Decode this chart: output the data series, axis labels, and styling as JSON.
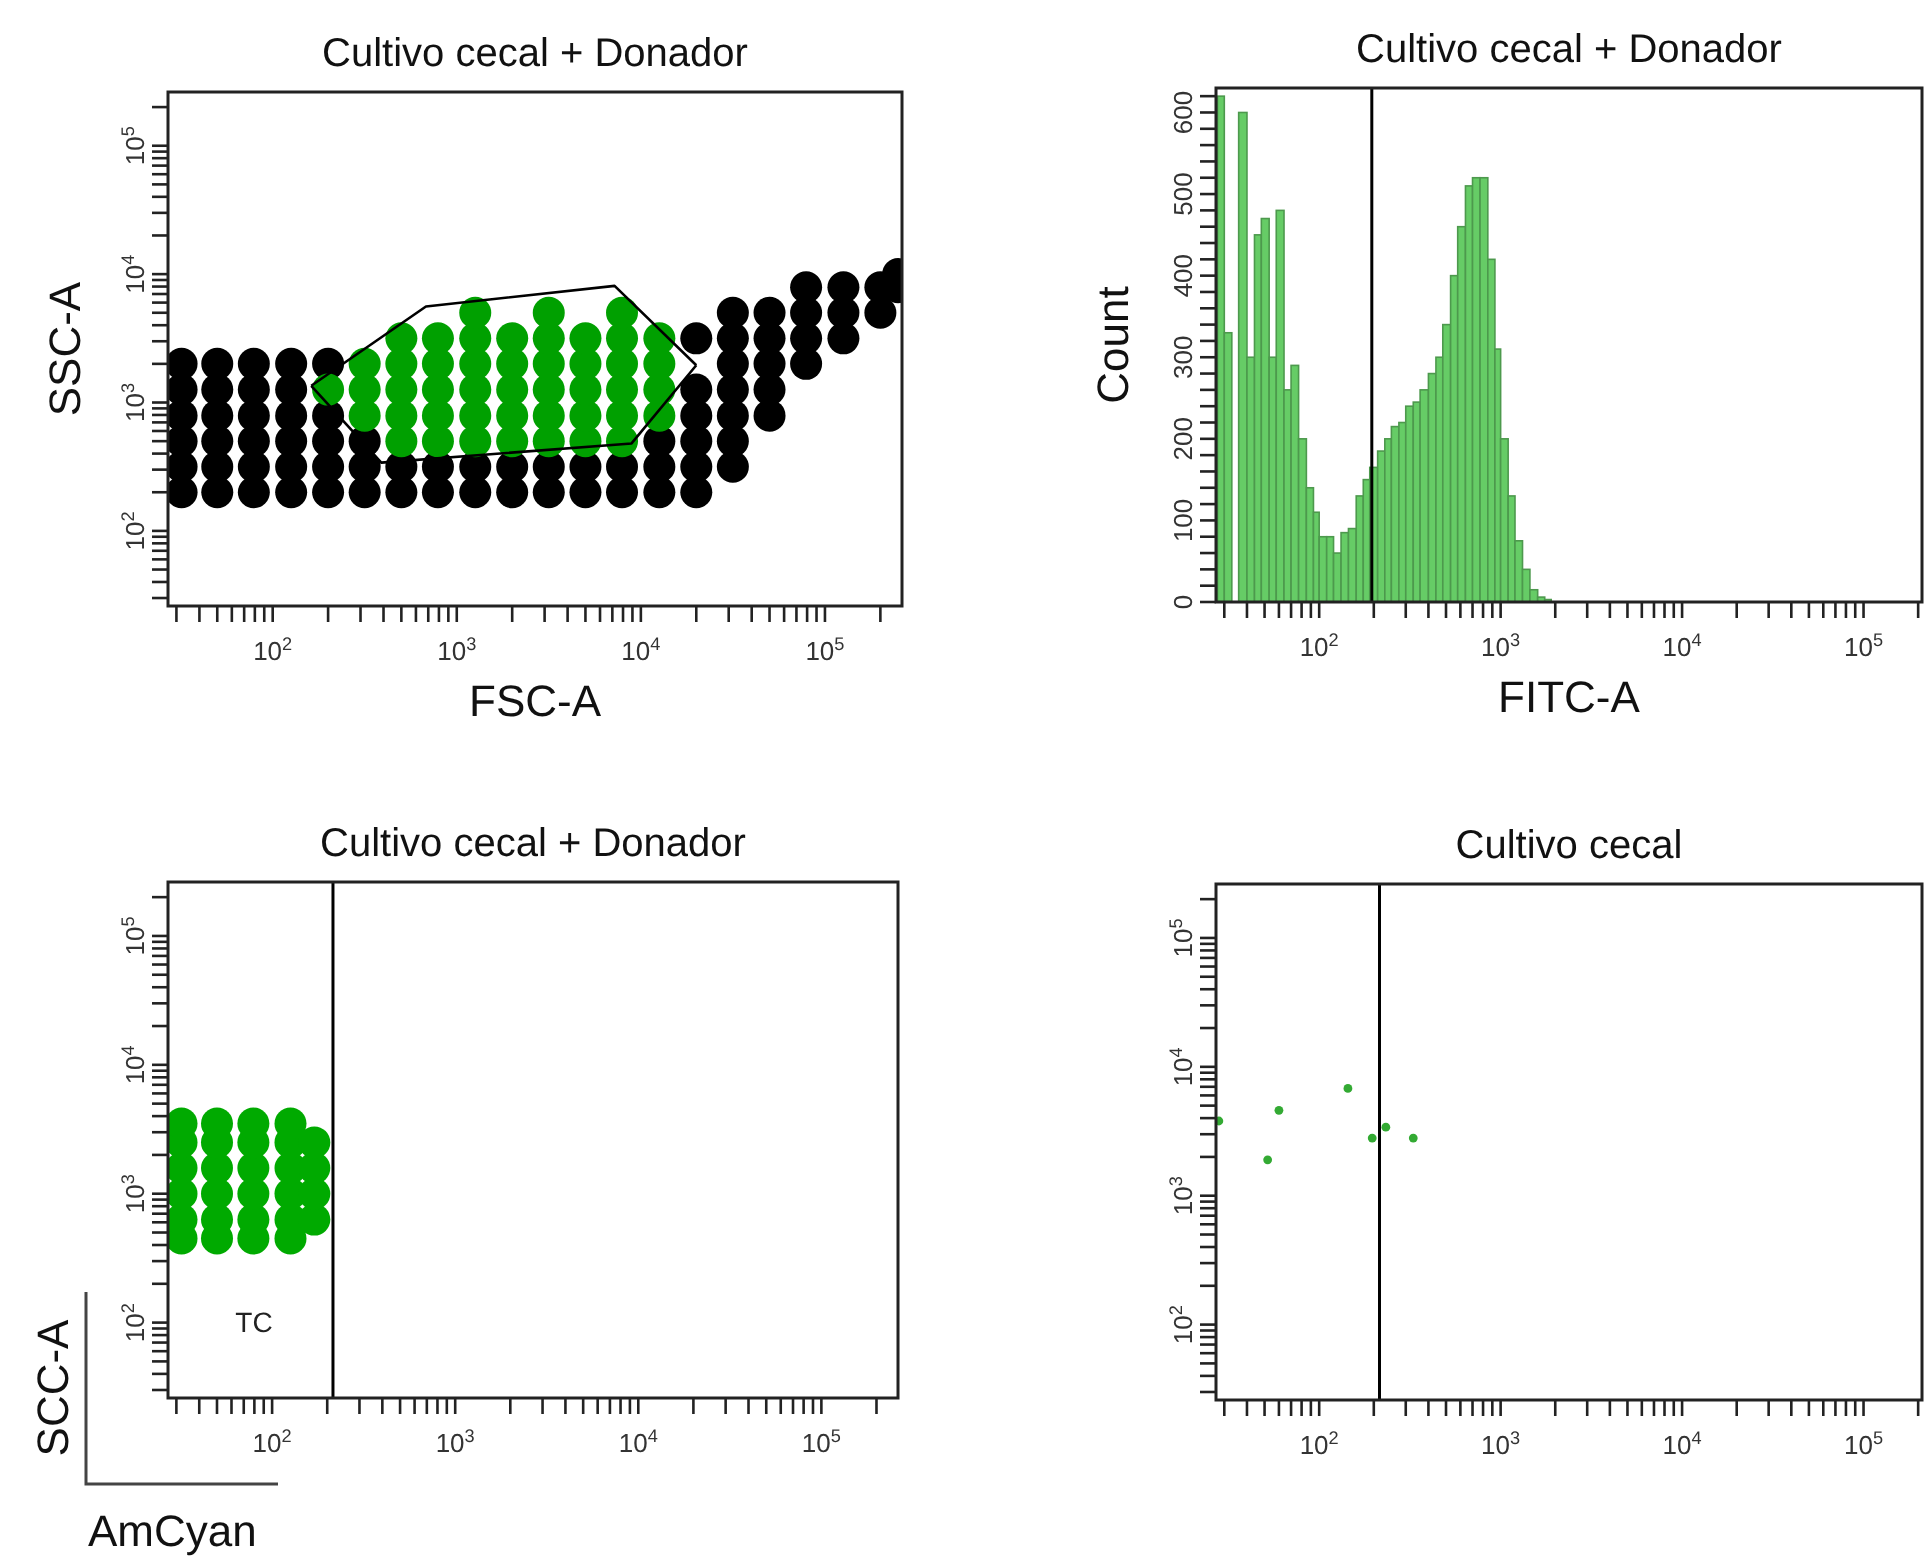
{
  "chart_data": [
    {
      "type": "scatter",
      "title": "Cultivo cecal + Donador",
      "xlabel": "FSC-A",
      "ylabel": "SSC-A",
      "log": "xy",
      "marker": "circle",
      "xlim": [
        27,
        262144
      ],
      "ylim": [
        26,
        262144
      ],
      "xticks": [
        {
          "value": 30,
          "label": null
        },
        {
          "value": 40,
          "label": null
        },
        {
          "value": 50,
          "label": null
        },
        {
          "value": 60,
          "label": null
        },
        {
          "value": 70,
          "label": null
        },
        {
          "value": 80,
          "label": null
        },
        {
          "value": 90,
          "label": null
        },
        {
          "value": 100,
          "label": "10$^{2}$"
        },
        {
          "value": 200,
          "label": null
        },
        {
          "value": 300,
          "label": null
        },
        {
          "value": 400,
          "label": null
        },
        {
          "value": 500,
          "label": null
        },
        {
          "value": 600,
          "label": null
        },
        {
          "value": 700,
          "label": null
        },
        {
          "value": 800,
          "label": null
        },
        {
          "value": 900,
          "label": null
        },
        {
          "value": 1000,
          "label": "10$^{3}$"
        },
        {
          "value": 2000,
          "label": null
        },
        {
          "value": 3000,
          "label": null
        },
        {
          "value": 4000,
          "label": null
        },
        {
          "value": 5000,
          "label": null
        },
        {
          "value": 6000,
          "label": null
        },
        {
          "value": 7000,
          "label": null
        },
        {
          "value": 8000,
          "label": null
        },
        {
          "value": 9000,
          "label": null
        },
        {
          "value": 10000,
          "label": "10$^{4}$"
        },
        {
          "value": 20000,
          "label": null
        },
        {
          "value": 30000,
          "label": null
        },
        {
          "value": 40000,
          "label": null
        },
        {
          "value": 50000,
          "label": null
        },
        {
          "value": 60000,
          "label": null
        },
        {
          "value": 70000,
          "label": null
        },
        {
          "value": 80000,
          "label": null
        },
        {
          "value": 90000,
          "label": null
        },
        {
          "value": 100000,
          "label": "10$^{5}$"
        },
        {
          "value": 200000,
          "label": null
        }
      ],
      "yticks": [
        {
          "value": 30,
          "label": null
        },
        {
          "value": 40,
          "label": null
        },
        {
          "value": 50,
          "label": null
        },
        {
          "value": 60,
          "label": null
        },
        {
          "value": 70,
          "label": null
        },
        {
          "value": 80,
          "label": null
        },
        {
          "value": 90,
          "label": null
        },
        {
          "value": 100,
          "label": "10$^{2}$"
        },
        {
          "value": 200,
          "label": null
        },
        {
          "value": 300,
          "label": null
        },
        {
          "value": 400,
          "label": null
        },
        {
          "value": 500,
          "label": null
        },
        {
          "value": 600,
          "label": null
        },
        {
          "value": 700,
          "label": null
        },
        {
          "value": 800,
          "label": null
        },
        {
          "value": 900,
          "label": null
        },
        {
          "value": 1000,
          "label": "10$^{3}$"
        },
        {
          "value": 2000,
          "label": null
        },
        {
          "value": 3000,
          "label": null
        },
        {
          "value": 4000,
          "label": null
        },
        {
          "value": 5000,
          "label": null
        },
        {
          "value": 6000,
          "label": null
        },
        {
          "value": 7000,
          "label": null
        },
        {
          "value": 8000,
          "label": null
        },
        {
          "value": 9000,
          "label": null
        },
        {
          "value": 10000,
          "label": "10$^{4}$"
        },
        {
          "value": 20000,
          "label": null
        },
        {
          "value": 30000,
          "label": null
        },
        {
          "value": 40000,
          "label": null
        },
        {
          "value": 50000,
          "label": null
        },
        {
          "value": 60000,
          "label": null
        },
        {
          "value": 70000,
          "label": null
        },
        {
          "value": 80000,
          "label": null
        },
        {
          "value": 90000,
          "label": null
        },
        {
          "value": 100000,
          "label": "10$^{5}$"
        },
        {
          "value": 200000,
          "label": null
        }
      ],
      "series": [
        {
          "color": "#000000",
          "x": [
            32,
            50,
            79,
            126,
            200,
            316,
            500,
            790,
            1260,
            2000,
            3160,
            5000,
            7900,
            12600,
            20000,
            32,
            50,
            79,
            126,
            200,
            316,
            500,
            790,
            1260,
            2000,
            3160,
            5000,
            7900,
            12600,
            20000,
            31600,
            32,
            50,
            79,
            126,
            200,
            316,
            12600,
            20000,
            31600,
            32,
            50,
            79,
            126,
            200,
            20000,
            31600,
            50000,
            32,
            50,
            79,
            126,
            20000,
            31600,
            50000,
            32,
            50,
            79,
            126,
            200,
            31600,
            50000,
            79000,
            20000,
            31600,
            50000,
            79000,
            126000,
            31600,
            50000,
            79000,
            126000,
            200000,
            79000,
            126000,
            200000,
            250000,
            250000
          ],
          "values": [
            200,
            200,
            200,
            200,
            200,
            200,
            200,
            200,
            200,
            200,
            200,
            200,
            200,
            200,
            200,
            316,
            316,
            316,
            316,
            316,
            316,
            316,
            316,
            316,
            316,
            316,
            316,
            316,
            316,
            316,
            316,
            500,
            500,
            500,
            500,
            500,
            500,
            500,
            500,
            500,
            790,
            790,
            790,
            790,
            790,
            790,
            790,
            790,
            1260,
            1260,
            1260,
            1260,
            1260,
            1260,
            1260,
            2000,
            2000,
            2000,
            2000,
            2000,
            2000,
            2000,
            2000,
            3160,
            3160,
            3160,
            3160,
            3160,
            5000,
            5000,
            5000,
            5000,
            5000,
            7900,
            7900,
            7900,
            7900,
            10000
          ]
        },
        {
          "color": "#00a000",
          "x": [
            500,
            790,
            1260,
            2000,
            3160,
            5000,
            7900,
            316,
            500,
            790,
            1260,
            2000,
            3160,
            5000,
            7900,
            12600,
            200,
            316,
            500,
            790,
            1260,
            2000,
            3160,
            5000,
            7900,
            12600,
            316,
            500,
            790,
            1260,
            2000,
            3160,
            5000,
            7900,
            12600,
            500,
            790,
            1260,
            2000,
            3160,
            5000,
            7900,
            12600,
            1260,
            3160,
            7900
          ],
          "values": [
            500,
            500,
            500,
            500,
            500,
            500,
            500,
            790,
            790,
            790,
            790,
            790,
            790,
            790,
            790,
            790,
            1260,
            1260,
            1260,
            1260,
            1260,
            1260,
            1260,
            1260,
            1260,
            1260,
            2000,
            2000,
            2000,
            2000,
            2000,
            2000,
            2000,
            2000,
            2000,
            3160,
            3160,
            3160,
            3160,
            3160,
            3160,
            3160,
            3160,
            5000,
            5000,
            5000
          ]
        },
        {
          "type": "line",
          "marker": "none",
          "color": "#000000",
          "x": [
            162,
            389,
            8900,
            20000
          ],
          "values": [
            1350,
            340,
            480,
            1950
          ]
        },
        {
          "type": "line",
          "marker": "none",
          "color": "#000000",
          "x": [
            162,
            680,
            7200,
            20000
          ],
          "values": [
            1350,
            5600,
            8100,
            1950
          ]
        }
      ]
    },
    {
      "type": "histogram",
      "title": "Cultivo cecal + Donador",
      "xlabel": "FITC-A",
      "ylabel": "Count",
      "log": "x",
      "color": "#66cc66",
      "xlim": [
        27,
        210000
      ],
      "ylim": [
        0,
        630
      ],
      "xticks": [
        {
          "value": 30,
          "label": null
        },
        {
          "value": 40,
          "label": null
        },
        {
          "value": 50,
          "label": null
        },
        {
          "value": 60,
          "label": null
        },
        {
          "value": 70,
          "label": null
        },
        {
          "value": 80,
          "label": null
        },
        {
          "value": 90,
          "label": null
        },
        {
          "value": 100,
          "label": "10$^{2}$"
        },
        {
          "value": 200,
          "label": null
        },
        {
          "value": 300,
          "label": null
        },
        {
          "value": 400,
          "label": null
        },
        {
          "value": 500,
          "label": null
        },
        {
          "value": 600,
          "label": null
        },
        {
          "value": 700,
          "label": null
        },
        {
          "value": 800,
          "label": null
        },
        {
          "value": 900,
          "label": null
        },
        {
          "value": 1000,
          "label": "10$^{3}$"
        },
        {
          "value": 2000,
          "label": null
        },
        {
          "value": 3000,
          "label": null
        },
        {
          "value": 4000,
          "label": null
        },
        {
          "value": 5000,
          "label": null
        },
        {
          "value": 6000,
          "label": null
        },
        {
          "value": 7000,
          "label": null
        },
        {
          "value": 8000,
          "label": null
        },
        {
          "value": 9000,
          "label": null
        },
        {
          "value": 10000,
          "label": "10$^{4}$"
        },
        {
          "value": 20000,
          "label": null
        },
        {
          "value": 30000,
          "label": null
        },
        {
          "value": 40000,
          "label": null
        },
        {
          "value": 50000,
          "label": null
        },
        {
          "value": 60000,
          "label": null
        },
        {
          "value": 70000,
          "label": null
        },
        {
          "value": 80000,
          "label": null
        },
        {
          "value": 90000,
          "label": null
        },
        {
          "value": 100000,
          "label": "10$^{5}$"
        },
        {
          "value": 200000,
          "label": null
        }
      ],
      "yticks": [
        0,
        {
          "value": 20,
          "label": null
        },
        {
          "value": 40,
          "label": null
        },
        {
          "value": 60,
          "label": null
        },
        {
          "value": 80,
          "label": null
        },
        100,
        {
          "value": 120,
          "label": null
        },
        {
          "value": 140,
          "label": null
        },
        {
          "value": 160,
          "label": null
        },
        {
          "value": 180,
          "label": null
        },
        200,
        {
          "value": 220,
          "label": null
        },
        {
          "value": 240,
          "label": null
        },
        {
          "value": 260,
          "label": null
        },
        {
          "value": 280,
          "label": null
        },
        300,
        {
          "value": 320,
          "label": null
        },
        {
          "value": 340,
          "label": null
        },
        {
          "value": 360,
          "label": null
        },
        {
          "value": 380,
          "label": null
        },
        400,
        {
          "value": 420,
          "label": null
        },
        {
          "value": 440,
          "label": null
        },
        {
          "value": 460,
          "label": null
        },
        {
          "value": 480,
          "label": null
        },
        500,
        {
          "value": 520,
          "label": null
        },
        {
          "value": 540,
          "label": null
        },
        {
          "value": 560,
          "label": null
        },
        {
          "value": 580,
          "label": null
        },
        600,
        {
          "value": 620,
          "label": null
        }
      ],
      "bins": [
        27.5,
        30,
        33,
        36,
        40,
        44,
        48,
        53,
        58,
        64,
        70,
        77,
        85,
        93,
        100,
        110,
        120,
        132,
        145,
        160,
        175,
        190,
        210,
        230,
        250,
        275,
        300,
        330,
        360,
        400,
        440,
        480,
        530,
        580,
        640,
        700,
        770,
        850,
        930,
        1000,
        1100,
        1200,
        1320,
        1450,
        1600,
        1750,
        1900
      ],
      "values": [
        620,
        330,
        0,
        600,
        300,
        450,
        470,
        300,
        480,
        260,
        290,
        200,
        140,
        110,
        80,
        80,
        60,
        85,
        90,
        130,
        150,
        165,
        185,
        200,
        215,
        220,
        240,
        245,
        260,
        280,
        300,
        340,
        400,
        460,
        510,
        520,
        520,
        420,
        310,
        200,
        130,
        75,
        40,
        15,
        6,
        3
      ],
      "ref_lines": [
        {
          "axis": "x",
          "value": 195,
          "color": "#000000"
        }
      ]
    },
    {
      "type": "scatter",
      "title": "Cultivo cecal + Donador",
      "xlabel": "AmCyan",
      "ylabel": "SCC-A",
      "log": "xy",
      "marker": "circle",
      "xlim": [
        27,
        262144
      ],
      "ylim": [
        26,
        262144
      ],
      "xticks": [
        {
          "value": 30,
          "label": null
        },
        {
          "value": 40,
          "label": null
        },
        {
          "value": 50,
          "label": null
        },
        {
          "value": 60,
          "label": null
        },
        {
          "value": 70,
          "label": null
        },
        {
          "value": 80,
          "label": null
        },
        {
          "value": 90,
          "label": null
        },
        {
          "value": 100,
          "label": "10$^{2}$"
        },
        {
          "value": 200,
          "label": null
        },
        {
          "value": 300,
          "label": null
        },
        {
          "value": 400,
          "label": null
        },
        {
          "value": 500,
          "label": null
        },
        {
          "value": 600,
          "label": null
        },
        {
          "value": 700,
          "label": null
        },
        {
          "value": 800,
          "label": null
        },
        {
          "value": 900,
          "label": null
        },
        {
          "value": 1000,
          "label": "10$^{3}$"
        },
        {
          "value": 2000,
          "label": null
        },
        {
          "value": 3000,
          "label": null
        },
        {
          "value": 4000,
          "label": null
        },
        {
          "value": 5000,
          "label": null
        },
        {
          "value": 6000,
          "label": null
        },
        {
          "value": 7000,
          "label": null
        },
        {
          "value": 8000,
          "label": null
        },
        {
          "value": 9000,
          "label": null
        },
        {
          "value": 10000,
          "label": "10$^{4}$"
        },
        {
          "value": 20000,
          "label": null
        },
        {
          "value": 30000,
          "label": null
        },
        {
          "value": 40000,
          "label": null
        },
        {
          "value": 50000,
          "label": null
        },
        {
          "value": 60000,
          "label": null
        },
        {
          "value": 70000,
          "label": null
        },
        {
          "value": 80000,
          "label": null
        },
        {
          "value": 90000,
          "label": null
        },
        {
          "value": 100000,
          "label": "10$^{5}$"
        },
        {
          "value": 200000,
          "label": null
        }
      ],
      "yticks": [
        {
          "value": 30,
          "label": null
        },
        {
          "value": 40,
          "label": null
        },
        {
          "value": 50,
          "label": null
        },
        {
          "value": 60,
          "label": null
        },
        {
          "value": 70,
          "label": null
        },
        {
          "value": 80,
          "label": null
        },
        {
          "value": 90,
          "label": null
        },
        {
          "value": 100,
          "label": "10$^{2}$"
        },
        {
          "value": 200,
          "label": null
        },
        {
          "value": 300,
          "label": null
        },
        {
          "value": 400,
          "label": null
        },
        {
          "value": 500,
          "label": null
        },
        {
          "value": 600,
          "label": null
        },
        {
          "value": 700,
          "label": null
        },
        {
          "value": 800,
          "label": null
        },
        {
          "value": 900,
          "label": null
        },
        {
          "value": 1000,
          "label": "10$^{3}$"
        },
        {
          "value": 2000,
          "label": null
        },
        {
          "value": 3000,
          "label": null
        },
        {
          "value": 4000,
          "label": null
        },
        {
          "value": 5000,
          "label": null
        },
        {
          "value": 6000,
          "label": null
        },
        {
          "value": 7000,
          "label": null
        },
        {
          "value": 8000,
          "label": null
        },
        {
          "value": 9000,
          "label": null
        },
        {
          "value": 10000,
          "label": "10$^{4}$"
        },
        {
          "value": 20000,
          "label": null
        },
        {
          "value": 30000,
          "label": null
        },
        {
          "value": 40000,
          "label": null
        },
        {
          "value": 50000,
          "label": null
        },
        {
          "value": 60000,
          "label": null
        },
        {
          "value": 70000,
          "label": null
        },
        {
          "value": 80000,
          "label": null
        },
        {
          "value": 90000,
          "label": null
        },
        {
          "value": 100000,
          "label": "10$^{5}$"
        },
        {
          "value": 200000,
          "label": null
        }
      ],
      "series": [
        {
          "color": "#00aa00",
          "x": [
            32,
            50,
            79,
            126,
            32,
            50,
            79,
            126,
            170,
            32,
            50,
            79,
            126,
            170,
            32,
            50,
            79,
            126,
            170,
            32,
            50,
            79,
            126,
            170,
            32,
            50,
            79,
            126
          ],
          "values": [
            450,
            450,
            450,
            450,
            630,
            630,
            630,
            630,
            630,
            1000,
            1000,
            1000,
            1000,
            1000,
            1580,
            1580,
            1580,
            1580,
            1580,
            2500,
            2500,
            2500,
            2500,
            2500,
            3500,
            3500,
            3500,
            3500
          ]
        }
      ],
      "ref_lines": [
        {
          "axis": "x",
          "value": 215,
          "color": "#000000"
        }
      ],
      "annotations": [
        "TC"
      ]
    },
    {
      "type": "scatter",
      "title": "Cultivo cecal",
      "log": "xy",
      "marker": "circle",
      "xlim": [
        27,
        210000
      ],
      "ylim": [
        26,
        262144
      ],
      "xticks": [
        {
          "value": 30,
          "label": null
        },
        {
          "value": 40,
          "label": null
        },
        {
          "value": 50,
          "label": null
        },
        {
          "value": 60,
          "label": null
        },
        {
          "value": 70,
          "label": null
        },
        {
          "value": 80,
          "label": null
        },
        {
          "value": 90,
          "label": null
        },
        {
          "value": 100,
          "label": "10$^{2}$"
        },
        {
          "value": 200,
          "label": null
        },
        {
          "value": 300,
          "label": null
        },
        {
          "value": 400,
          "label": null
        },
        {
          "value": 500,
          "label": null
        },
        {
          "value": 600,
          "label": null
        },
        {
          "value": 700,
          "label": null
        },
        {
          "value": 800,
          "label": null
        },
        {
          "value": 900,
          "label": null
        },
        {
          "value": 1000,
          "label": "10$^{3}$"
        },
        {
          "value": 2000,
          "label": null
        },
        {
          "value": 3000,
          "label": null
        },
        {
          "value": 4000,
          "label": null
        },
        {
          "value": 5000,
          "label": null
        },
        {
          "value": 6000,
          "label": null
        },
        {
          "value": 7000,
          "label": null
        },
        {
          "value": 8000,
          "label": null
        },
        {
          "value": 9000,
          "label": null
        },
        {
          "value": 10000,
          "label": "10$^{4}$"
        },
        {
          "value": 20000,
          "label": null
        },
        {
          "value": 30000,
          "label": null
        },
        {
          "value": 40000,
          "label": null
        },
        {
          "value": 50000,
          "label": null
        },
        {
          "value": 60000,
          "label": null
        },
        {
          "value": 70000,
          "label": null
        },
        {
          "value": 80000,
          "label": null
        },
        {
          "value": 90000,
          "label": null
        },
        {
          "value": 100000,
          "label": "10$^{5}$"
        },
        {
          "value": 200000,
          "label": null
        }
      ],
      "yticks": [
        {
          "value": 30,
          "label": null
        },
        {
          "value": 40,
          "label": null
        },
        {
          "value": 50,
          "label": null
        },
        {
          "value": 60,
          "label": null
        },
        {
          "value": 70,
          "label": null
        },
        {
          "value": 80,
          "label": null
        },
        {
          "value": 90,
          "label": null
        },
        {
          "value": 100,
          "label": "10$^{2}$"
        },
        {
          "value": 200,
          "label": null
        },
        {
          "value": 300,
          "label": null
        },
        {
          "value": 400,
          "label": null
        },
        {
          "value": 500,
          "label": null
        },
        {
          "value": 600,
          "label": null
        },
        {
          "value": 700,
          "label": null
        },
        {
          "value": 800,
          "label": null
        },
        {
          "value": 900,
          "label": null
        },
        {
          "value": 1000,
          "label": "10$^{3}$"
        },
        {
          "value": 2000,
          "label": null
        },
        {
          "value": 3000,
          "label": null
        },
        {
          "value": 4000,
          "label": null
        },
        {
          "value": 5000,
          "label": null
        },
        {
          "value": 6000,
          "label": null
        },
        {
          "value": 7000,
          "label": null
        },
        {
          "value": 8000,
          "label": null
        },
        {
          "value": 9000,
          "label": null
        },
        {
          "value": 10000,
          "label": "10$^{4}$"
        },
        {
          "value": 20000,
          "label": null
        },
        {
          "value": 30000,
          "label": null
        },
        {
          "value": 40000,
          "label": null
        },
        {
          "value": 50000,
          "label": null
        },
        {
          "value": 60000,
          "label": null
        },
        {
          "value": 70000,
          "label": null
        },
        {
          "value": 80000,
          "label": null
        },
        {
          "value": 90000,
          "label": null
        },
        {
          "value": 100000,
          "label": "10$^{5}$"
        },
        {
          "value": 200000,
          "label": null
        }
      ],
      "series": [
        {
          "color": "#33aa33",
          "x": [
            28,
            60,
            52,
            144,
            196,
            233,
            330
          ],
          "values": [
            3800,
            4600,
            1900,
            6800,
            2800,
            3400,
            2800
          ]
        }
      ],
      "ref_lines": [
        {
          "axis": "x",
          "value": 215,
          "color": "#000000"
        }
      ]
    }
  ]
}
